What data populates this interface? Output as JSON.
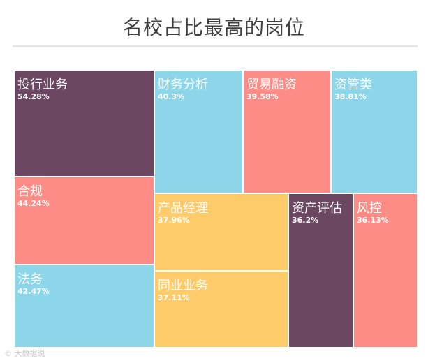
{
  "title": "名校占比最高的岗位",
  "watermark": "大数据说",
  "colors": {
    "purple": "#6b4761",
    "blue": "#8dd6ea",
    "salmon": "#fd8c86",
    "yellow": "#fecb6b"
  },
  "chart_data": {
    "type": "treemap",
    "title": "名校占比最高的岗位",
    "series": [
      {
        "name": "投行业务",
        "value": 54.28,
        "label": "54.28%",
        "color": "#6b4761"
      },
      {
        "name": "合规",
        "value": 44.24,
        "label": "44.24%",
        "color": "#fd8c86"
      },
      {
        "name": "法务",
        "value": 42.47,
        "label": "42.47%",
        "color": "#8dd6ea"
      },
      {
        "name": "财务分析",
        "value": 40.3,
        "label": "40.3%",
        "color": "#8dd6ea"
      },
      {
        "name": "贸易融资",
        "value": 39.58,
        "label": "39.58%",
        "color": "#fd8c86"
      },
      {
        "name": "资管类",
        "value": 38.81,
        "label": "38.81%",
        "color": "#8dd6ea"
      },
      {
        "name": "产品经理",
        "value": 37.96,
        "label": "37.96%",
        "color": "#fecb6b"
      },
      {
        "name": "同业业务",
        "value": 37.11,
        "label": "37.11%",
        "color": "#fecb6b"
      },
      {
        "name": "资产评估",
        "value": 36.2,
        "label": "36.2%",
        "color": "#6b4761"
      },
      {
        "name": "风控",
        "value": 36.13,
        "label": "36.13%",
        "color": "#fd8c86"
      }
    ]
  }
}
